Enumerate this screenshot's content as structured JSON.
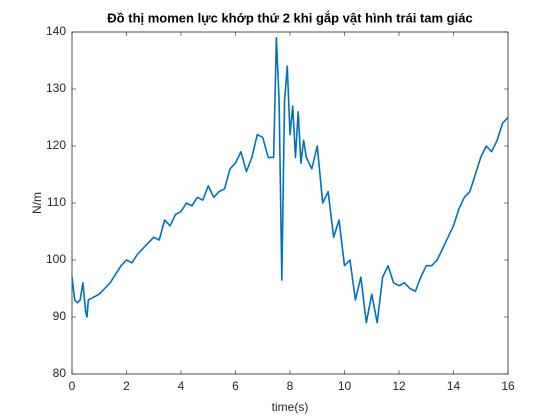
{
  "chart_data": {
    "type": "line",
    "title": "Đồ thị momen lực khớp thứ 2 khi gắp vật hình trái tam giác",
    "x_label": "time(s)",
    "y_label": "N/m",
    "xlim": [
      0,
      16
    ],
    "ylim": [
      80,
      140
    ],
    "xticks": [
      0,
      2,
      4,
      6,
      8,
      10,
      12,
      14,
      16
    ],
    "yticks": [
      80,
      90,
      100,
      110,
      120,
      130,
      140
    ],
    "grid": false,
    "series": [
      {
        "color": "#0072bd",
        "x": [
          0,
          0.1,
          0.2,
          0.3,
          0.4,
          0.5,
          0.55,
          0.6,
          0.8,
          1.0,
          1.2,
          1.4,
          1.6,
          1.8,
          2.0,
          2.2,
          2.4,
          2.6,
          2.8,
          3.0,
          3.2,
          3.4,
          3.6,
          3.8,
          4.0,
          4.2,
          4.4,
          4.6,
          4.8,
          5.0,
          5.2,
          5.4,
          5.6,
          5.8,
          6.0,
          6.2,
          6.4,
          6.6,
          6.8,
          7.0,
          7.2,
          7.4,
          7.5,
          7.6,
          7.7,
          7.8,
          7.9,
          8.0,
          8.1,
          8.2,
          8.3,
          8.4,
          8.5,
          8.6,
          8.8,
          9.0,
          9.2,
          9.4,
          9.6,
          9.8,
          10.0,
          10.2,
          10.4,
          10.6,
          10.8,
          11.0,
          11.2,
          11.4,
          11.6,
          11.8,
          12.0,
          12.2,
          12.4,
          12.6,
          12.8,
          13.0,
          13.2,
          13.4,
          13.6,
          13.8,
          14.0,
          14.2,
          14.4,
          14.6,
          14.8,
          15.0,
          15.2,
          15.4,
          15.6,
          15.8,
          16.0
        ],
        "values": [
          97,
          93,
          92.5,
          93,
          96,
          91,
          90,
          93,
          93.5,
          94,
          95,
          96,
          97.5,
          99,
          100,
          99.5,
          101,
          102,
          103,
          104,
          103.5,
          107,
          106,
          108,
          108.5,
          110,
          109.5,
          111,
          110.5,
          113,
          111,
          112,
          112.5,
          116,
          117,
          119,
          115.5,
          118,
          122,
          121.5,
          118,
          118,
          139,
          128,
          96.5,
          128,
          134,
          122,
          127,
          118,
          126,
          117,
          121,
          118,
          116,
          120,
          110,
          112,
          104,
          107,
          99,
          100,
          93,
          97,
          89,
          94,
          89,
          97,
          99,
          96,
          95.5,
          96,
          95,
          94.5,
          97,
          99,
          99,
          100,
          102,
          104,
          106,
          109,
          111,
          112,
          115,
          118,
          120,
          119,
          121,
          124,
          125
        ]
      }
    ]
  }
}
